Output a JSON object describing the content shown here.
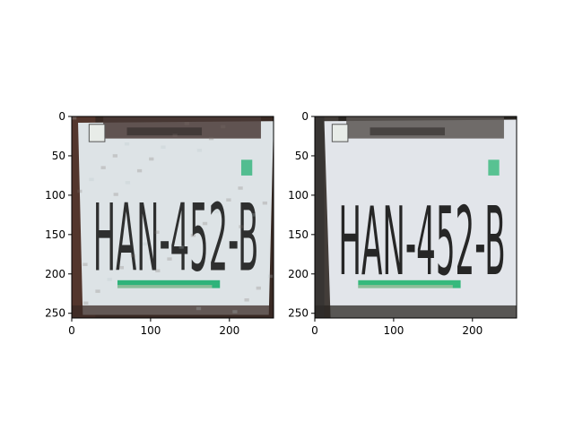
{
  "chart_data": [
    {
      "type": "image",
      "subject": "license-plate",
      "plate_text": "HAN-452-B",
      "image_size": [
        256,
        256
      ],
      "xlim": [
        0,
        256
      ],
      "ylim": [
        256,
        0
      ],
      "xticks": [
        0,
        100,
        200
      ],
      "yticks": [
        0,
        50,
        100,
        150,
        200,
        250
      ],
      "xlabel": "",
      "ylabel": "",
      "title": "",
      "grid": false,
      "appearance": "low-resolution, noisy reconstruction",
      "colors": {
        "plate": "#dde3e6",
        "text": "#1c1c1c",
        "border": "#3a2a24",
        "stripe": "#2fb37a"
      }
    },
    {
      "type": "image",
      "subject": "license-plate",
      "plate_text": "HAN-452-B",
      "image_size": [
        256,
        256
      ],
      "xlim": [
        0,
        256
      ],
      "ylim": [
        256,
        0
      ],
      "xticks": [
        0,
        100,
        200
      ],
      "yticks": [
        0,
        50,
        100,
        150,
        200,
        250
      ],
      "xlabel": "",
      "ylabel": "",
      "title": "",
      "grid": false,
      "appearance": "higher-resolution, sharper",
      "colors": {
        "plate": "#e2e5ea",
        "text": "#1e1e1e",
        "border": "#2a2622",
        "stripe": "#36b97c"
      }
    }
  ]
}
